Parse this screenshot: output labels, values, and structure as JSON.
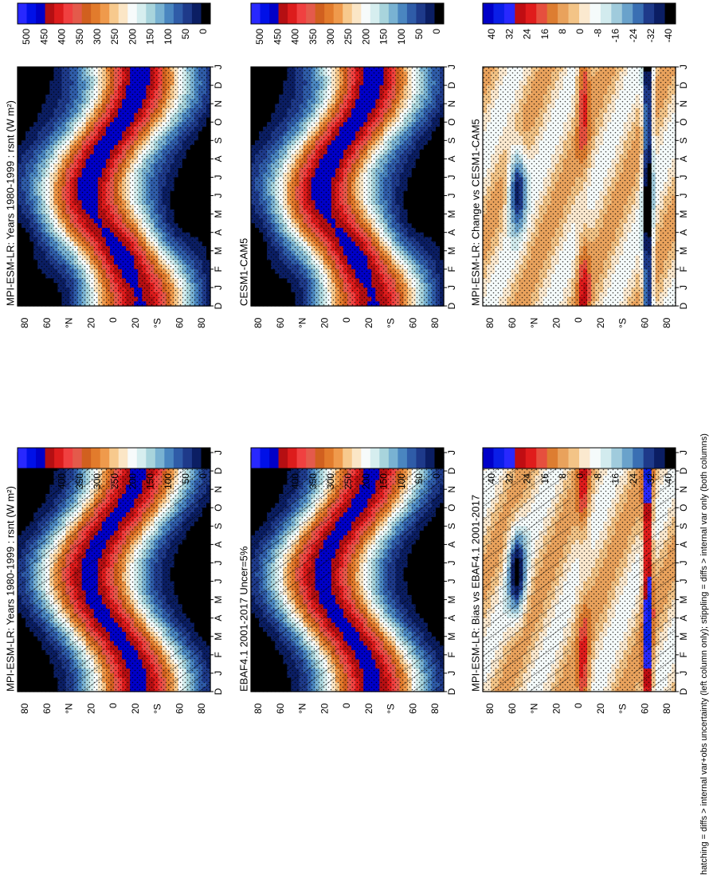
{
  "footnote": "hatching = diffs > internal var+obs uncertainty (left column only); stippling = diffs > internal var only (both columns)",
  "colors": {
    "abs_ramp": [
      "#000000",
      "#0b1e63",
      "#1e3a8a",
      "#2f5ca8",
      "#4a86c0",
      "#79b2d2",
      "#a8d4dc",
      "#d6eeef",
      "#f7fbfb",
      "#fbe6c6",
      "#f7c98d",
      "#ef9a4c",
      "#e27b2c",
      "#d1601f",
      "#e45a4b",
      "#f04040",
      "#dd1c1c",
      "#b50f12",
      "#0000c8",
      "#0010e8",
      "#2828ff"
    ],
    "diff_ramp": [
      "#000000",
      "#0b1e63",
      "#1e3a8a",
      "#3a6fb3",
      "#6aa2cb",
      "#a0cbdc",
      "#d2ebee",
      "#f5fbfb",
      "#fbe9cf",
      "#f3c487",
      "#e9a25c",
      "#dd7d31",
      "#e64f3e",
      "#e01c1c",
      "#c00d12",
      "#2828ff",
      "#0a1ee8",
      "#0000c8"
    ],
    "hatch": "#000000",
    "stipple": "#000000"
  },
  "chart_data": [
    {
      "panel": "row1-col1",
      "type": "heatmap",
      "title": "MPI-ESM-LR: Years 1980-1999 : rsnt (W m²)",
      "variable": "rsnt",
      "units": "W m-2",
      "x": [
        "J",
        "F",
        "M",
        "A",
        "M",
        "J",
        "J",
        "A",
        "S",
        "O",
        "N",
        "D",
        "J"
      ],
      "x_extra": "D",
      "y": [
        "80",
        "60",
        "°N",
        "20",
        "0",
        "20",
        "°S",
        "60",
        "80"
      ],
      "colorbar_ticks": [
        "500",
        "450",
        "400",
        "350",
        "300",
        "250",
        "200",
        "150",
        "100",
        "50",
        "0"
      ],
      "zlim": [
        0,
        500
      ],
      "hatching": true,
      "stippling": true
    },
    {
      "panel": "row1-col2",
      "type": "heatmap",
      "title": "MPI-ESM-LR: Years 1980-1999 : rsnt (W m²)",
      "variable": "rsnt",
      "units": "W m-2",
      "x": [
        "J",
        "F",
        "M",
        "A",
        "M",
        "J",
        "J",
        "A",
        "S",
        "O",
        "N",
        "D",
        "J"
      ],
      "x_extra": "D",
      "y": [
        "80",
        "60",
        "°N",
        "20",
        "0",
        "20",
        "°S",
        "60",
        "80"
      ],
      "colorbar_ticks": [
        "500",
        "450",
        "400",
        "350",
        "300",
        "250",
        "200",
        "150",
        "100",
        "50",
        "0"
      ],
      "zlim": [
        0,
        500
      ],
      "hatching": false,
      "stippling": true
    },
    {
      "panel": "row2-col1",
      "type": "heatmap",
      "title": "EBAF4.1 2001-2017 Uncer=5%",
      "x": [
        "J",
        "F",
        "M",
        "A",
        "M",
        "J",
        "J",
        "A",
        "S",
        "O",
        "N",
        "D",
        "J"
      ],
      "x_extra": "D",
      "y": [
        "80",
        "60",
        "°N",
        "20",
        "0",
        "20",
        "°S",
        "60",
        "80"
      ],
      "colorbar_ticks": [
        "500",
        "450",
        "400",
        "350",
        "300",
        "250",
        "200",
        "150",
        "100",
        "50",
        "0"
      ],
      "zlim": [
        0,
        500
      ],
      "hatching": true,
      "stippling": true
    },
    {
      "panel": "row2-col2",
      "type": "heatmap",
      "title": "CESM1-CAM5",
      "x": [
        "J",
        "F",
        "M",
        "A",
        "M",
        "J",
        "J",
        "A",
        "S",
        "O",
        "N",
        "D",
        "J"
      ],
      "x_extra": "D",
      "y": [
        "80",
        "60",
        "°N",
        "20",
        "0",
        "20",
        "°S",
        "60",
        "80"
      ],
      "colorbar_ticks": [
        "500",
        "450",
        "400",
        "350",
        "300",
        "250",
        "200",
        "150",
        "100",
        "50",
        "0"
      ],
      "zlim": [
        0,
        500
      ],
      "hatching": false,
      "stippling": true
    },
    {
      "panel": "row3-col1",
      "type": "heatmap",
      "title": "MPI-ESM-LR: Bias vs EBAF4.1 2001-2017",
      "x": [
        "J",
        "F",
        "M",
        "A",
        "M",
        "J",
        "J",
        "A",
        "S",
        "O",
        "N",
        "D",
        "J"
      ],
      "x_extra": "D",
      "y": [
        "80",
        "60",
        "°N",
        "20",
        "0",
        "20",
        "°S",
        "60",
        "80"
      ],
      "colorbar_ticks": [
        "40",
        "32",
        "24",
        "16",
        "8",
        "0",
        "-8",
        "-16",
        "-24",
        "-32",
        "-40"
      ],
      "zlim": [
        -40,
        40
      ],
      "hatching": true,
      "stippling": true
    },
    {
      "panel": "row3-col2",
      "type": "heatmap",
      "title": "MPI-ESM-LR: Change vs CESM1-CAM5",
      "x": [
        "J",
        "F",
        "M",
        "A",
        "M",
        "J",
        "J",
        "A",
        "S",
        "O",
        "N",
        "D",
        "J"
      ],
      "x_extra": "D",
      "y": [
        "80",
        "60",
        "°N",
        "20",
        "0",
        "20",
        "°S",
        "60",
        "80"
      ],
      "colorbar_ticks": [
        "40",
        "32",
        "24",
        "16",
        "8",
        "0",
        "-8",
        "-16",
        "-24",
        "-32",
        "-40"
      ],
      "zlim": [
        -40,
        40
      ],
      "hatching": false,
      "stippling": true
    }
  ]
}
